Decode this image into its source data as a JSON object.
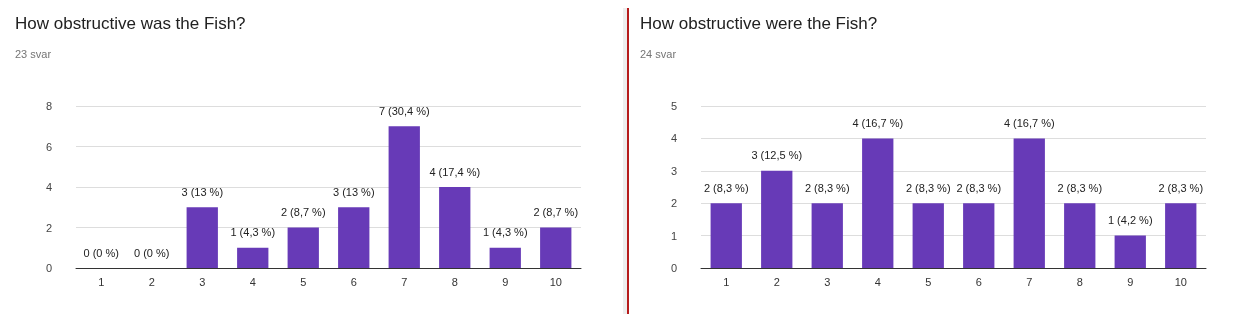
{
  "chart_data": [
    {
      "type": "bar",
      "title": "How obstructive was the Fish?",
      "subtitle": "23 svar",
      "categories": [
        "1",
        "2",
        "3",
        "4",
        "5",
        "6",
        "7",
        "8",
        "9",
        "10"
      ],
      "values": [
        0,
        0,
        3,
        1,
        2,
        3,
        7,
        4,
        1,
        2
      ],
      "color": "#673ab7",
      "value_labels": [
        "0 (0 %)",
        "0 (0 %)",
        "3 (13 %)",
        "1 (4,3 %)",
        "2 (8,7 %)",
        "3 (13 %)",
        "7 (30,4 %)",
        "4 (17,4 %)",
        "1 (4,3 %)",
        "2 (8,7 %)"
      ],
      "ylim": [
        0,
        8
      ],
      "yticks": [
        0,
        2,
        4,
        6,
        8
      ],
      "grid": "y"
    },
    {
      "type": "bar",
      "title": "How obstructive were the Fish?",
      "subtitle": "24 svar",
      "categories": [
        "1",
        "2",
        "3",
        "4",
        "5",
        "6",
        "7",
        "8",
        "9",
        "10"
      ],
      "values": [
        2,
        3,
        2,
        4,
        2,
        2,
        4,
        2,
        1,
        2
      ],
      "color": "#673ab7",
      "value_labels": [
        "2 (8,3 %)",
        "3 (12,5 %)",
        "2 (8,3 %)",
        "4 (16,7 %)",
        "2 (8,3 %)",
        "2 (8,3 %)",
        "4 (16,7 %)",
        "2 (8,3 %)",
        "1 (4,2 %)",
        "2 (8,3 %)"
      ],
      "ylim": [
        0,
        5
      ],
      "yticks": [
        0,
        1,
        2,
        3,
        4,
        5
      ],
      "grid": "y"
    }
  ]
}
